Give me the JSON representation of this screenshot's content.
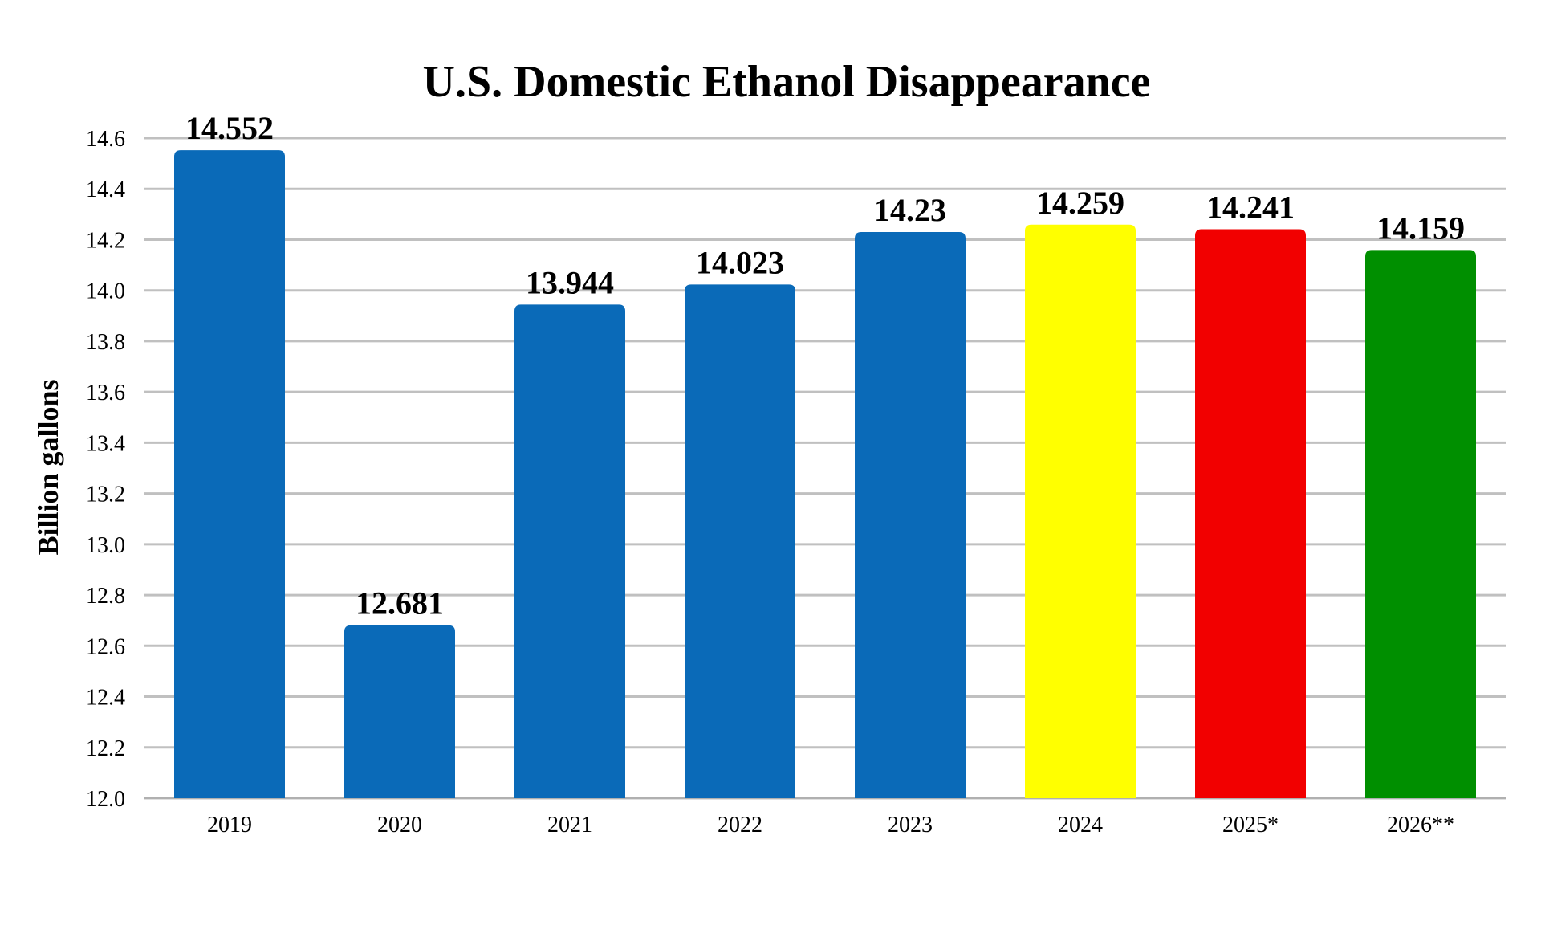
{
  "chart_data": {
    "type": "bar",
    "title": "U.S. Domestic Ethanol Disappearance",
    "xlabel": "",
    "ylabel": "Billion gallons",
    "categories": [
      "2019",
      "2020",
      "2021",
      "2022",
      "2023",
      "2024",
      "2025*",
      "2026**"
    ],
    "values": [
      14.552,
      12.681,
      13.944,
      14.023,
      14.23,
      14.259,
      14.241,
      14.159
    ],
    "data_labels": [
      "14.552",
      "12.681",
      "13.944",
      "14.023",
      "14.23",
      "14.259",
      "14.241",
      "14.159"
    ],
    "bar_colors": [
      "#0a6ab8",
      "#0a6ab8",
      "#0a6ab8",
      "#0a6ab8",
      "#0a6ab8",
      "#ffff00",
      "#f20000",
      "#008f00"
    ],
    "ylim": [
      12.0,
      14.6
    ],
    "yticks": [
      "12.0",
      "12.2",
      "12.4",
      "12.6",
      "12.8",
      "13.0",
      "13.2",
      "13.4",
      "13.6",
      "13.8",
      "14.0",
      "14.2",
      "14.4",
      "14.6"
    ],
    "ytick_values": [
      12.0,
      12.2,
      12.4,
      12.6,
      12.8,
      13.0,
      13.2,
      13.4,
      13.6,
      13.8,
      14.0,
      14.2,
      14.4,
      14.6
    ],
    "grid": true,
    "legend": "none",
    "gridline_color": "#c0c0c0"
  }
}
